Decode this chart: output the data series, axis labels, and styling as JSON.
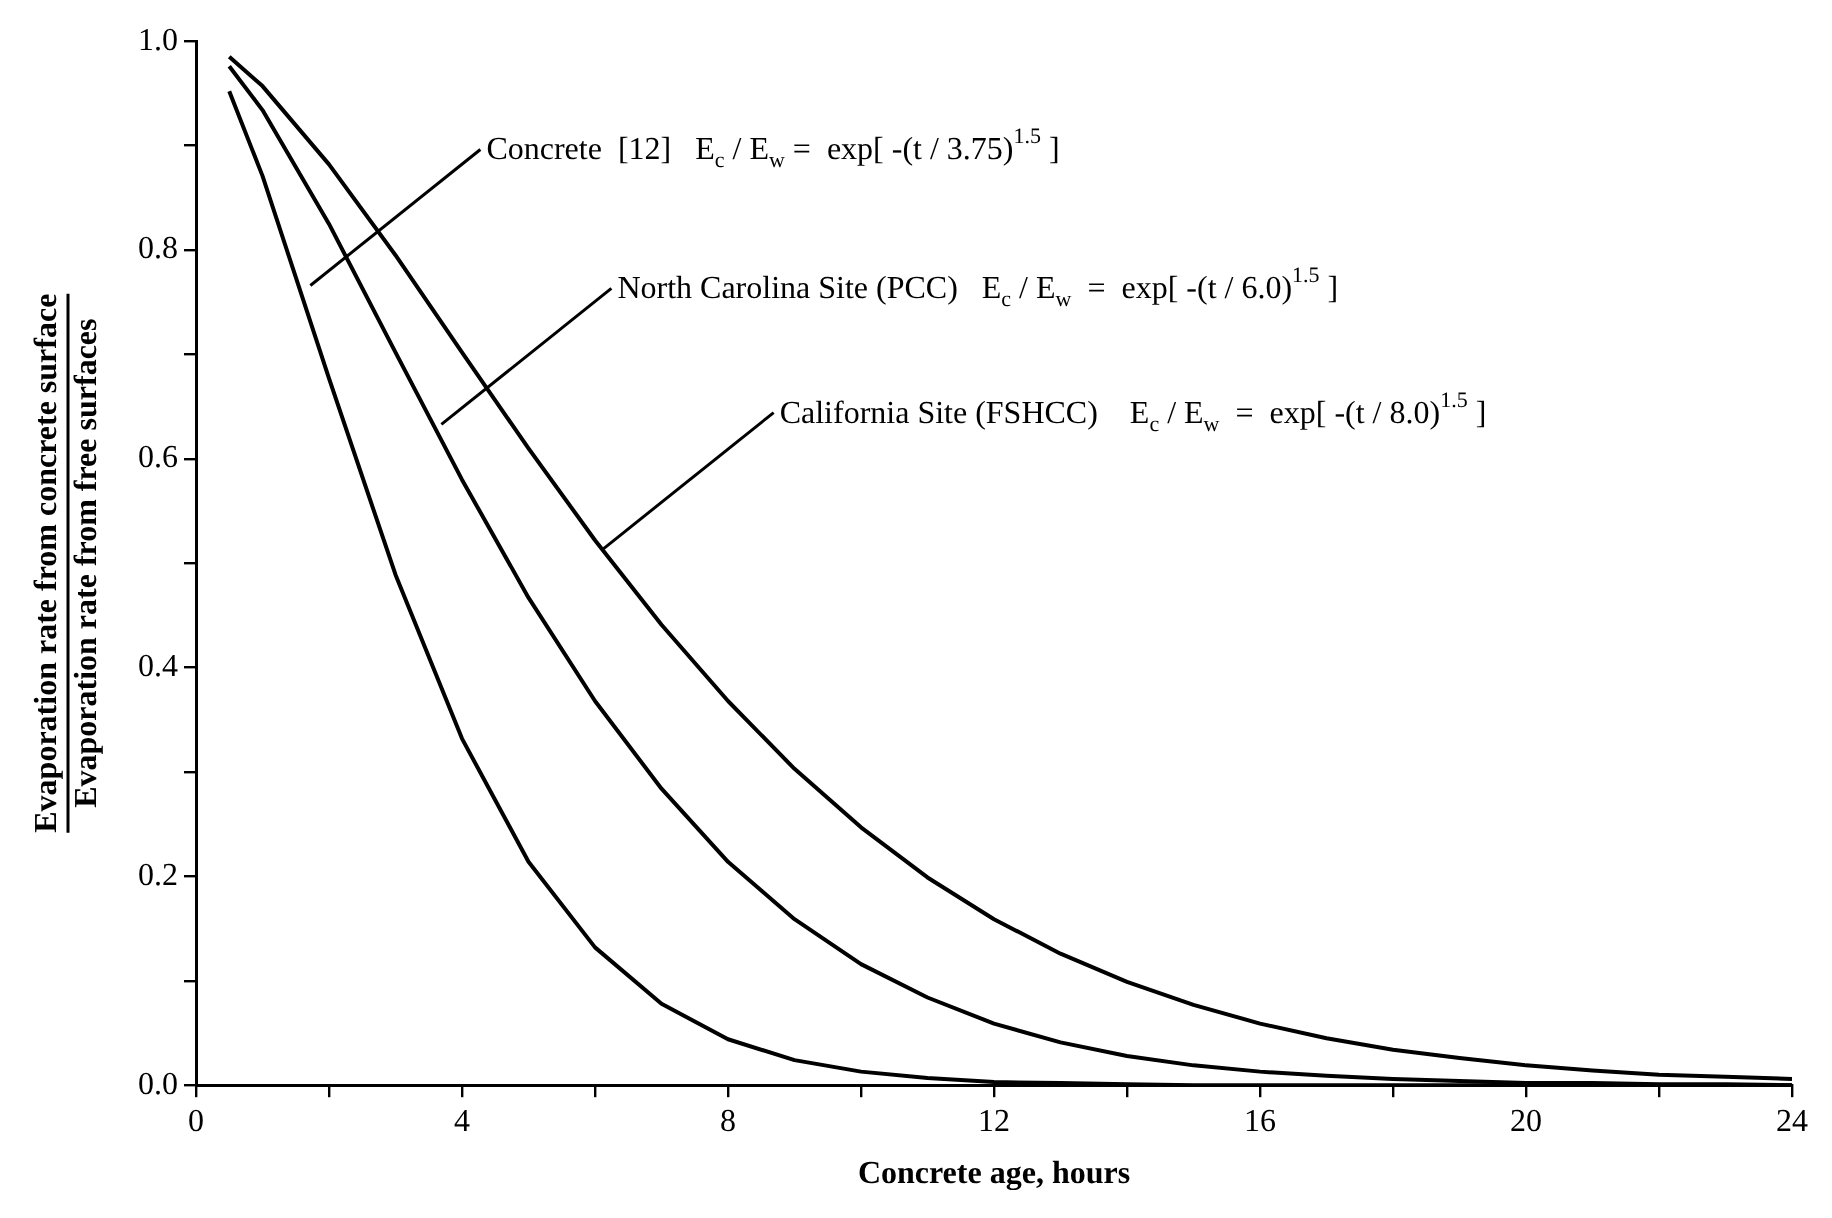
{
  "chart_data": {
    "type": "line",
    "xlabel": "Concrete age, hours",
    "ylabel": "Evaporation rate from concrete surface\nEvaporation rate from free surfaces",
    "x": [
      0.5,
      1,
      2,
      3,
      4,
      5,
      6,
      7,
      8,
      9,
      10,
      11,
      12,
      13,
      14,
      15,
      16,
      17,
      18,
      19,
      20,
      21,
      22,
      23,
      24
    ],
    "series": [
      {
        "color": "#000000",
        "values": [
          0.952,
          0.871,
          0.677,
          0.489,
          0.332,
          0.214,
          0.132,
          0.078,
          0.044,
          0.024,
          0.013,
          0.007,
          0.003,
          0.002,
          0.001,
          0,
          0,
          0,
          0,
          0,
          0,
          0,
          0,
          0,
          0
        ]
      },
      {
        "color": "#000000",
        "values": [
          0.976,
          0.934,
          0.825,
          0.702,
          0.58,
          0.467,
          0.368,
          0.284,
          0.214,
          0.159,
          0.116,
          0.084,
          0.059,
          0.041,
          0.028,
          0.019,
          0.013,
          0.009,
          0.006,
          0.004,
          0.002,
          0.002,
          0.001,
          0.001,
          0
        ]
      },
      {
        "color": "#000000",
        "values": [
          0.985,
          0.957,
          0.882,
          0.795,
          0.702,
          0.61,
          0.522,
          0.441,
          0.368,
          0.303,
          0.247,
          0.199,
          0.159,
          0.126,
          0.099,
          0.077,
          0.059,
          0.045,
          0.034,
          0.026,
          0.019,
          0.014,
          0.01,
          0.008,
          0.006
        ]
      }
    ],
    "annotations": [
      {
        "text": "Concrete  [12]   E$_{c}$ / E$_{w}$ =  exp[ -(t / 3.75)$^{1.5}$ ]",
        "x": 1.72,
        "y": 0.766
      },
      {
        "text": "North Carolina Site (PCC)   E$_{c}$ / E$_{w}$  =  exp[ -(t / 6.0)$^{1.5}$ ]",
        "x": 3.69,
        "y": 0.633
      },
      {
        "text": "California Site (FSHCC)    E$_{c}$ / E$_{w}$  =  exp[ -(t / 8.0)$^{1.5}$ ]",
        "x": 6.13,
        "y": 0.514
      }
    ],
    "xlim": [
      0,
      24
    ],
    "xticks": [
      0,
      {
        "value": 2,
        "label": null
      },
      4,
      {
        "value": 6,
        "label": null
      },
      8,
      {
        "value": 10,
        "label": null
      },
      12,
      {
        "value": 14,
        "label": null
      },
      16,
      {
        "value": 18,
        "label": null
      },
      20,
      {
        "value": 22,
        "label": null
      },
      24
    ],
    "ylim": [
      0,
      1
    ],
    "yticks": [
      {
        "value": 0,
        "label": "0.0"
      },
      {
        "value": 0.1,
        "label": null
      },
      {
        "value": 0.2,
        "label": "0.2"
      },
      {
        "value": 0.3,
        "label": null
      },
      {
        "value": 0.4,
        "label": "0.4"
      },
      {
        "value": 0.5,
        "label": null
      },
      {
        "value": 0.6,
        "label": "0.6"
      },
      {
        "value": 0.7,
        "label": null
      },
      {
        "value": 0.8,
        "label": "0.8"
      },
      {
        "value": 0.9,
        "label": null
      },
      {
        "value": 1,
        "label": "1.0"
      }
    ],
    "grid": false,
    "legend": false,
    "marker": "none",
    "line_style": "solid"
  }
}
